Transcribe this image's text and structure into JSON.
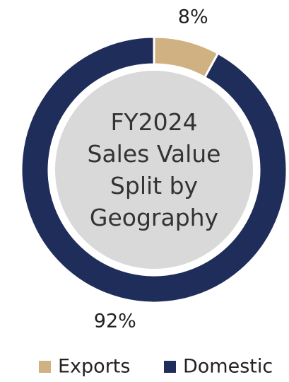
{
  "chart_data": {
    "type": "donut",
    "title": "FY2024 Sales Value Split by Geography",
    "categories": [
      "Exports",
      "Domestic"
    ],
    "values": [
      8,
      92
    ],
    "value_labels": [
      "8%",
      "92%"
    ],
    "colors": [
      "#cfb182",
      "#1f2d5a"
    ],
    "legend": "bottom"
  }
}
